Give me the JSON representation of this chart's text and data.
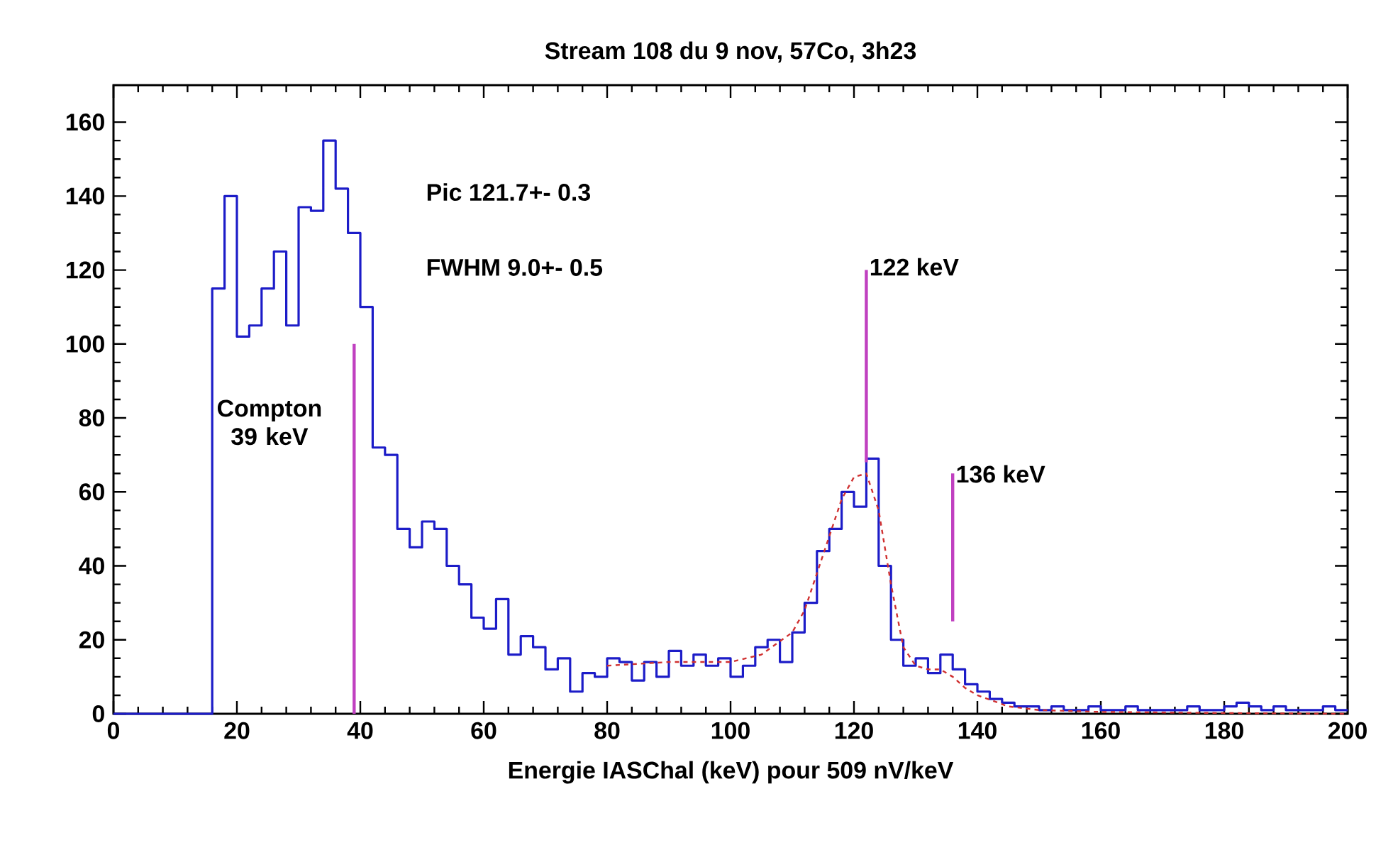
{
  "chart_data": {
    "type": "histogram",
    "title": "Stream 108 du 9 nov, 57Co, 3h23",
    "xlabel": "Energie IASChal (keV) pour 509 nV/keV",
    "xlim": [
      0,
      200
    ],
    "xticks": [
      0,
      20,
      40,
      60,
      80,
      100,
      120,
      140,
      160,
      180,
      200
    ],
    "ylim": [
      0,
      170
    ],
    "yticks": [
      0,
      20,
      40,
      60,
      80,
      100,
      120,
      140,
      160
    ],
    "grid": false,
    "series": [
      {
        "color": "#1c1cc8",
        "bins": [
          0,
          2,
          4,
          6,
          8,
          10,
          12,
          14,
          16,
          18,
          20,
          22,
          24,
          26,
          28,
          30,
          32,
          34,
          36,
          38,
          40,
          42,
          44,
          46,
          48,
          50,
          52,
          54,
          56,
          58,
          60,
          62,
          64,
          66,
          68,
          70,
          72,
          74,
          76,
          78,
          80,
          82,
          84,
          86,
          88,
          90,
          92,
          94,
          96,
          98,
          100,
          102,
          104,
          106,
          108,
          110,
          112,
          114,
          116,
          118,
          120,
          122,
          124,
          126,
          128,
          130,
          132,
          134,
          136,
          138,
          140,
          142,
          144,
          146,
          148,
          150,
          152,
          154,
          156,
          158,
          160,
          162,
          164,
          166,
          168,
          170,
          172,
          174,
          176,
          178,
          180,
          182,
          184,
          186,
          188,
          190,
          192,
          194,
          196,
          198,
          200
        ],
        "values": [
          0,
          0,
          0,
          0,
          0,
          0,
          0,
          0,
          115,
          140,
          102,
          105,
          115,
          125,
          105,
          137,
          136,
          155,
          142,
          130,
          110,
          72,
          70,
          50,
          45,
          52,
          50,
          40,
          35,
          26,
          23,
          31,
          16,
          21,
          18,
          12,
          15,
          6,
          11,
          10,
          15,
          14,
          9,
          14,
          10,
          17,
          13,
          16,
          13,
          15,
          10,
          13,
          18,
          20,
          14,
          22,
          30,
          44,
          50,
          60,
          56,
          69,
          40,
          20,
          13,
          15,
          11,
          16,
          12,
          8,
          6,
          4,
          3,
          2,
          2,
          1,
          2,
          1,
          1,
          2,
          1,
          1,
          2,
          1,
          1,
          1,
          1,
          2,
          1,
          1,
          2,
          3,
          2,
          1,
          2,
          1,
          1,
          1,
          2,
          1
        ]
      },
      {
        "type": "line",
        "color": "#d03030",
        "line_style": "dashed",
        "x": [
          80,
          90,
          100,
          105,
          110,
          112,
          114,
          116,
          118,
          120,
          122,
          124,
          126,
          128,
          130,
          132,
          134,
          136,
          138,
          140,
          145,
          150,
          160,
          180,
          200
        ],
        "values": [
          13,
          14,
          14,
          16,
          22,
          28,
          38,
          48,
          58,
          64,
          65,
          55,
          35,
          18,
          13,
          12,
          12,
          10,
          7,
          5,
          2,
          1,
          0.5,
          0.2,
          0
        ]
      },
      {
        "type": "line",
        "color": "#c040c0",
        "line_style": "solid",
        "x": [
          39,
          39
        ],
        "values": [
          0,
          100
        ]
      },
      {
        "type": "line",
        "color": "#c040c0",
        "line_style": "solid",
        "x": [
          122,
          122
        ],
        "values": [
          68,
          120
        ]
      },
      {
        "type": "line",
        "color": "#c040c0",
        "line_style": "solid",
        "x": [
          136,
          136
        ],
        "values": [
          25,
          65
        ]
      }
    ],
    "annotations": [
      "Pic  121.7+-  0.3",
      "FWHM    9.0+-  0.5",
      {
        "text": "Compton 39 keV",
        "x": 39,
        "y": 85
      },
      {
        "text": "122 keV",
        "x": 122,
        "y": 118
      },
      {
        "text": "136 keV",
        "x": 136,
        "y": 62
      }
    ]
  }
}
